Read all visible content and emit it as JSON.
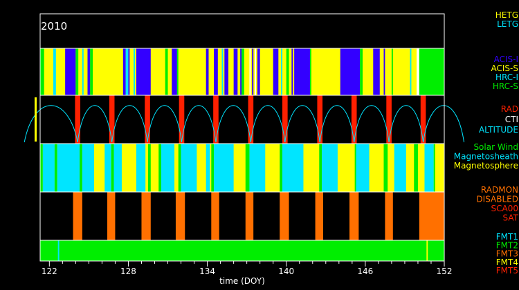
{
  "chart_data": {
    "type": "timeline",
    "year_label": "2010",
    "xlabel": "time (DOY)",
    "xlim": [
      121.3,
      152.0
    ],
    "x_ticks": [
      122,
      128,
      134,
      140,
      146,
      152
    ],
    "colors": {
      "yellow": "#ffff00",
      "blue": "#3300ff",
      "green": "#00ee00",
      "cyan": "#00e5ff",
      "red": "#ff2000",
      "orange": "#ff7000",
      "white": "#ffffff",
      "black": "#000000"
    },
    "legend_groups": [
      {
        "items": [
          {
            "label": "HETG",
            "color": "#ffff00"
          },
          {
            "label": "LETG",
            "color": "#00e5ff"
          }
        ]
      },
      {
        "items": [
          {
            "label": "ACIS-I",
            "color": "#3300ff"
          },
          {
            "label": "ACIS-S",
            "color": "#ffff00"
          },
          {
            "label": "HRC-I",
            "color": "#00e5ff"
          },
          {
            "label": "HRC-S",
            "color": "#00ee00"
          }
        ]
      },
      {
        "items": [
          {
            "label": "RAD",
            "color": "#ff2000"
          },
          {
            "label": "CTI",
            "color": "#ffffff"
          },
          {
            "label": "ALTITUDE",
            "color": "#00e5ff"
          }
        ]
      },
      {
        "items": [
          {
            "label": "Solar Wind",
            "color": "#00ee00"
          },
          {
            "label": "Magnetosheath",
            "color": "#00e5ff"
          },
          {
            "label": "Magnetosphere",
            "color": "#ffff00"
          }
        ]
      },
      {
        "items": [
          {
            "label": "RADMON",
            "color": "#ff7000"
          },
          {
            "label": "DISABLED",
            "color": "#ff7000"
          },
          {
            "label": "SCA00",
            "color": "#ff2000"
          },
          {
            "label": "SAT",
            "color": "#ff2000"
          }
        ]
      },
      {
        "items": [
          {
            "label": "FMT1",
            "color": "#00e5ff"
          },
          {
            "label": "FMT2",
            "color": "#00ee00"
          },
          {
            "label": "FMT3",
            "color": "#ff7000"
          },
          {
            "label": "FMT4",
            "color": "#ffff00"
          },
          {
            "label": "FMT5",
            "color": "#ff2000"
          }
        ]
      }
    ],
    "instrument_base": "yellow",
    "instrument_segments": [
      [
        121.3,
        121.6,
        "green"
      ],
      [
        122.3,
        122.5,
        "cyan"
      ],
      [
        123.2,
        124.0,
        "blue"
      ],
      [
        124.0,
        124.2,
        "green"
      ],
      [
        124.5,
        124.6,
        "cyan"
      ],
      [
        124.9,
        125.1,
        "blue"
      ],
      [
        125.1,
        125.3,
        "green"
      ],
      [
        127.6,
        127.8,
        "blue"
      ],
      [
        127.8,
        128.0,
        "cyan"
      ],
      [
        128.0,
        128.1,
        "blue"
      ],
      [
        128.4,
        128.5,
        "cyan"
      ],
      [
        128.6,
        129.7,
        "blue"
      ],
      [
        130.8,
        131.0,
        "green"
      ],
      [
        131.3,
        131.7,
        "blue"
      ],
      [
        131.7,
        131.8,
        "green"
      ],
      [
        133.9,
        134.1,
        "blue"
      ],
      [
        134.5,
        134.8,
        "blue"
      ],
      [
        135.1,
        135.2,
        "cyan"
      ],
      [
        135.3,
        135.6,
        "blue"
      ],
      [
        136.0,
        136.3,
        "blue"
      ],
      [
        136.5,
        136.6,
        "blue"
      ],
      [
        136.6,
        136.8,
        "green"
      ],
      [
        137.2,
        137.3,
        "white"
      ],
      [
        137.4,
        137.5,
        "blue"
      ],
      [
        137.6,
        137.7,
        "white"
      ],
      [
        137.8,
        138.0,
        "blue"
      ],
      [
        139.0,
        139.4,
        "blue"
      ],
      [
        139.6,
        139.7,
        "cyan"
      ],
      [
        140.0,
        140.2,
        "green"
      ],
      [
        140.4,
        140.5,
        "blue"
      ],
      [
        140.6,
        141.8,
        "blue"
      ],
      [
        141.8,
        141.9,
        "green"
      ],
      [
        144.1,
        145.6,
        "blue"
      ],
      [
        145.6,
        145.8,
        "green"
      ],
      [
        146.6,
        147.1,
        "blue"
      ],
      [
        147.4,
        147.5,
        "blue"
      ],
      [
        148.0,
        148.1,
        "green"
      ],
      [
        149.4,
        149.5,
        "cyan"
      ],
      [
        149.9,
        150.1,
        "white"
      ],
      [
        150.1,
        152.0,
        "green"
      ]
    ],
    "rad_zones": [
      124.15,
      126.75,
      129.45,
      132.05,
      134.65,
      137.3,
      139.9,
      142.55,
      145.15,
      147.8,
      150.4
    ],
    "rad_zone_width": 0.4,
    "cti_marker": [
      121.4
    ],
    "environment_base": "yellow",
    "environment_segments": [
      [
        121.3,
        121.5,
        "green"
      ],
      [
        121.5,
        122.4,
        "cyan"
      ],
      [
        122.4,
        122.6,
        "green"
      ],
      [
        122.6,
        124.3,
        "cyan"
      ],
      [
        124.3,
        124.5,
        "green"
      ],
      [
        124.5,
        125.4,
        "cyan"
      ],
      [
        126.2,
        126.7,
        "cyan"
      ],
      [
        126.7,
        126.9,
        "green"
      ],
      [
        126.9,
        127.5,
        "cyan"
      ],
      [
        128.6,
        129.3,
        "cyan"
      ],
      [
        129.5,
        129.7,
        "green"
      ],
      [
        130.3,
        130.5,
        "green"
      ],
      [
        130.5,
        131.5,
        "cyan"
      ],
      [
        131.8,
        132.0,
        "green"
      ],
      [
        132.0,
        133.2,
        "cyan"
      ],
      [
        133.9,
        134.2,
        "cyan"
      ],
      [
        134.3,
        134.5,
        "green"
      ],
      [
        134.5,
        136.0,
        "cyan"
      ],
      [
        136.9,
        137.2,
        "green"
      ],
      [
        137.2,
        138.4,
        "cyan"
      ],
      [
        139.5,
        139.7,
        "green"
      ],
      [
        139.7,
        141.3,
        "cyan"
      ],
      [
        142.5,
        142.7,
        "green"
      ],
      [
        142.7,
        143.9,
        "cyan"
      ],
      [
        145.2,
        145.3,
        "green"
      ],
      [
        145.3,
        146.3,
        "cyan"
      ],
      [
        147.4,
        147.7,
        "green"
      ],
      [
        148.2,
        149.1,
        "cyan"
      ],
      [
        149.7,
        150.0,
        "green"
      ],
      [
        150.5,
        151.2,
        "cyan"
      ],
      [
        151.2,
        151.3,
        "green"
      ]
    ],
    "radmon_disabled": [
      [
        123.8,
        124.5
      ],
      [
        126.4,
        127.0
      ],
      [
        129.0,
        129.7
      ],
      [
        131.6,
        132.3
      ],
      [
        134.3,
        134.9
      ],
      [
        136.9,
        137.5
      ],
      [
        139.5,
        140.2
      ],
      [
        142.2,
        142.8
      ],
      [
        144.8,
        145.5
      ],
      [
        147.5,
        148.1
      ],
      [
        150.1,
        152.0
      ]
    ],
    "format_base": "green",
    "format_markers": [
      [
        122.7,
        "cyan"
      ],
      [
        150.7,
        "yellow"
      ]
    ]
  }
}
